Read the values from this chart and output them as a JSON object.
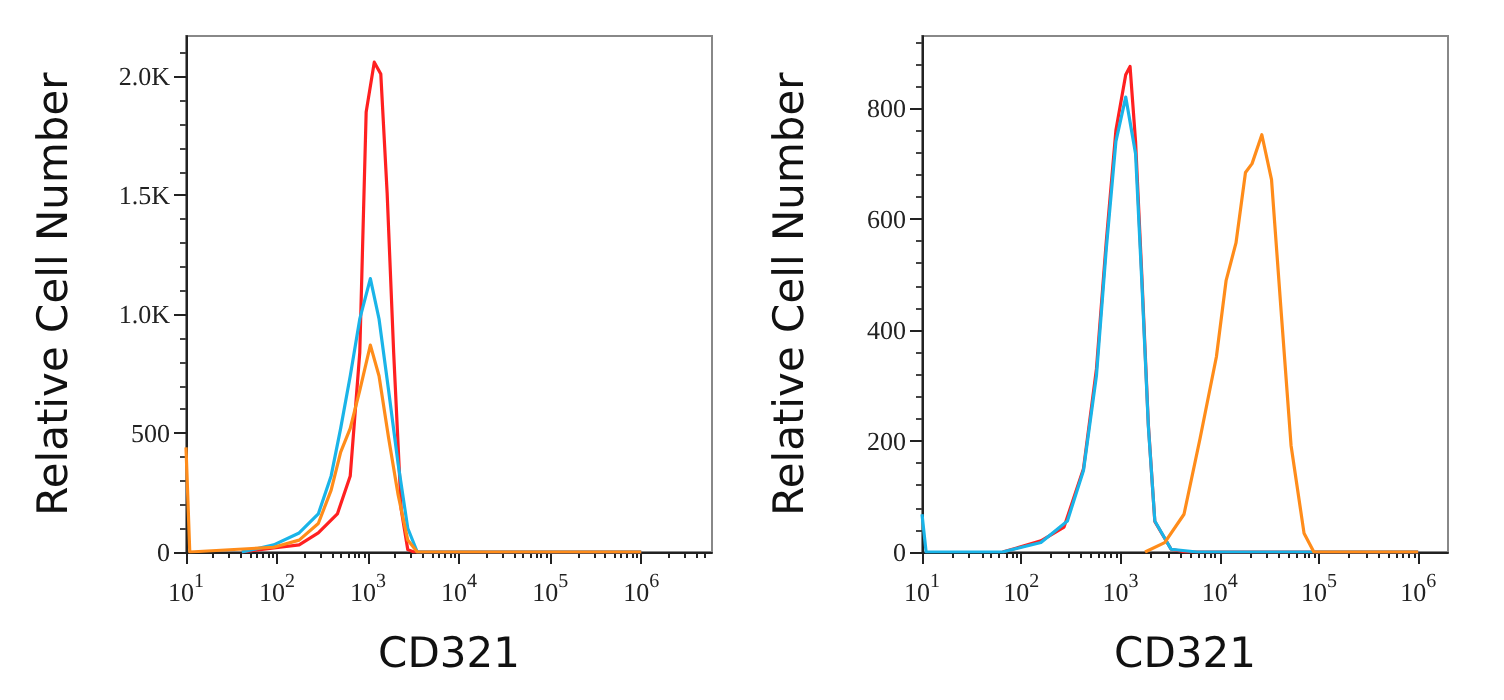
{
  "chart_data": [
    {
      "type": "line",
      "xlabel": "CD321",
      "ylabel": "Relative Cell Number",
      "log": "x",
      "xlim": [
        10,
        6000000
      ],
      "xticks": [
        {
          "value": 10,
          "label": "10$^{1}$"
        },
        {
          "value": 100,
          "label": "10$^{2}$"
        },
        {
          "value": 1000,
          "label": "10$^{3}$"
        },
        {
          "value": 10000,
          "label": "10$^{4}$"
        },
        {
          "value": 100000,
          "label": "10$^{5}$"
        },
        {
          "value": 1000000,
          "label": "10$^{6}$"
        }
      ],
      "ylim": [
        0,
        2170
      ],
      "yticks": [
        0,
        500,
        {
          "value": 1000,
          "label": "1.0K"
        },
        {
          "value": 1500,
          "label": "1.5K"
        },
        {
          "value": 2000,
          "label": "2.0K"
        }
      ],
      "grid": false,
      "marker": "none",
      "line_style": "solid",
      "series": [
        {
          "color": "#ff2020",
          "x": [
            41,
            108,
            175,
            284,
            460,
            637,
            811,
            953,
            1170,
            1380,
            1620,
            1910,
            2310,
            2730,
            3200,
            1000000
          ],
          "values": [
            0,
            20,
            30,
            80,
            160,
            320,
            840,
            1850,
            2060,
            2010,
            1510,
            840,
            180,
            10,
            0,
            0
          ]
        },
        {
          "color": "#1ab4e8",
          "x": [
            41,
            92,
            175,
            284,
            393,
            500,
            637,
            811,
            1060,
            1320,
            1680,
            2140,
            2730,
            3470,
            1000000
          ],
          "values": [
            0,
            30,
            80,
            160,
            320,
            520,
            740,
            980,
            1150,
            980,
            680,
            370,
            100,
            0,
            0
          ]
        },
        {
          "color": "#ff8c1a",
          "x": [
            10,
            11,
            92,
            175,
            284,
            393,
            500,
            637,
            811,
            1060,
            1320,
            1680,
            2140,
            2730,
            3470,
            1000000
          ],
          "values": [
            440,
            0,
            20,
            50,
            120,
            260,
            420,
            520,
            680,
            870,
            740,
            480,
            240,
            50,
            0,
            0
          ]
        }
      ]
    },
    {
      "type": "line",
      "xlabel": "CD321",
      "ylabel": "Relative Cell Number",
      "log": "x",
      "xlim": [
        10,
        2000000
      ],
      "xticks": [
        {
          "value": 10,
          "label": "10$^{1}$"
        },
        {
          "value": 100,
          "label": "10$^{2}$"
        },
        {
          "value": 1000,
          "label": "10$^{3}$"
        },
        {
          "value": 10000,
          "label": "10$^{4}$"
        },
        {
          "value": 100000,
          "label": "10$^{5}$"
        },
        {
          "value": 1000000,
          "label": "10$^{6}$"
        }
      ],
      "ylim": [
        0,
        930
      ],
      "yticks": [
        0,
        200,
        400,
        600,
        800
      ],
      "grid": false,
      "marker": "none",
      "line_style": "solid",
      "series": [
        {
          "color": "#ff2020",
          "x": [
            65,
            158,
            270,
            424,
            573,
            720,
            900,
            1130,
            1250,
            1420,
            1640,
            1910,
            2220,
            3240,
            4500,
            1000000
          ],
          "values": [
            0,
            20,
            45,
            150,
            330,
            560,
            760,
            860,
            875,
            740,
            500,
            230,
            55,
            5,
            0,
            0
          ]
        },
        {
          "color": "#1ab4e8",
          "x": [
            10,
            11,
            65,
            158,
            292,
            424,
            573,
            720,
            900,
            1130,
            1420,
            1640,
            1910,
            2220,
            3240,
            5900,
            1000000
          ],
          "values": [
            68,
            0,
            0,
            17,
            56,
            147,
            318,
            547,
            740,
            820,
            718,
            489,
            227,
            56,
            5,
            0,
            0
          ]
        },
        {
          "color": "#ff8c1a",
          "x": [
            1770,
            2790,
            4370,
            6350,
            9270,
            11600,
            14600,
            18200,
            21200,
            26600,
            33300,
            41700,
            52400,
            70800,
            89000,
            1000000
          ],
          "values": [
            0,
            17,
            68,
            205,
            352,
            489,
            557,
            684,
            700,
            752,
            671,
            432,
            192,
            34,
            0,
            0
          ]
        }
      ]
    }
  ]
}
